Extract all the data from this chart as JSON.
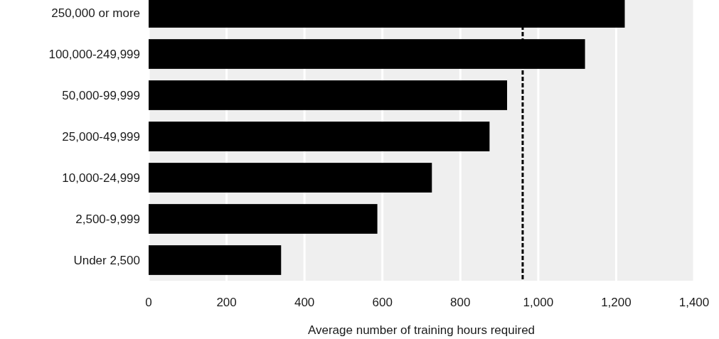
{
  "chart_data": {
    "type": "bar",
    "orientation": "horizontal",
    "xlabel": "Average number of training hours required",
    "categories": [
      "250,000 or more",
      "100,000-249,999",
      "50,000-99,999",
      "25,000-49,999",
      "10,000-24,999",
      "2,500-9,999",
      "Under 2,500"
    ],
    "values": [
      1222,
      1120,
      920,
      875,
      727,
      587,
      340
    ],
    "color": "#000000",
    "xlim": [
      0,
      1400
    ],
    "xticks": [
      0,
      200,
      400,
      600,
      800,
      {
        "value": 1000,
        "label": "1,000"
      },
      {
        "value": 1200,
        "label": "1,200"
      },
      {
        "value": 1400,
        "label": "1,400"
      }
    ],
    "grid": "x",
    "ref_lines": [
      {
        "axis": "x",
        "value": 960,
        "label": null,
        "color": "#000000",
        "line_style": "dashed"
      }
    ]
  }
}
